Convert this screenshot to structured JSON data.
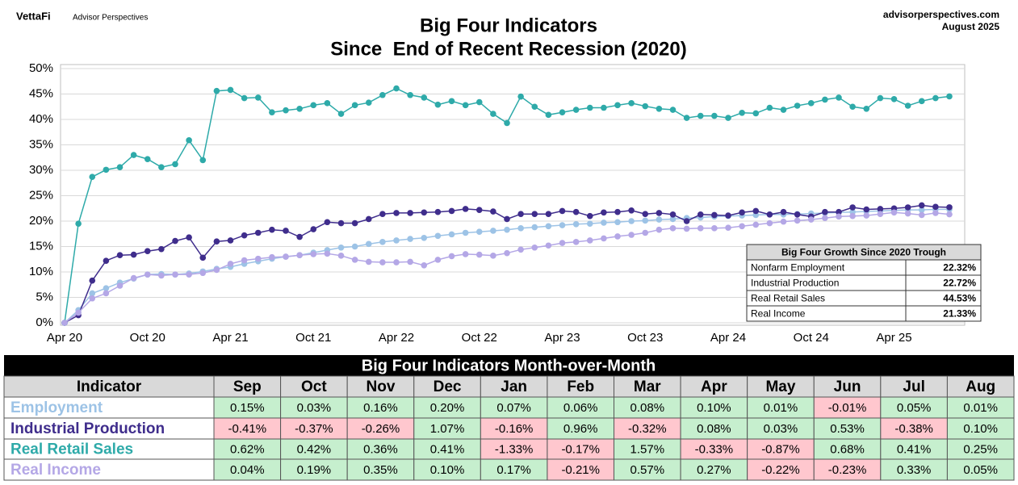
{
  "header": {
    "brand": "VettaFi",
    "brand_sub": "Advisor Perspectives",
    "site": "advisorperspectives.com",
    "date": "August 2025"
  },
  "chart_data": {
    "type": "line",
    "title": "Big Four Indicators",
    "subtitle": "Since  End of Recent Recession (2020)",
    "categories": [
      "Apr 20",
      null,
      null,
      null,
      null,
      null,
      "Oct 20",
      null,
      null,
      null,
      null,
      null,
      "Apr 21",
      null,
      null,
      null,
      null,
      null,
      "Oct 21",
      null,
      null,
      null,
      null,
      null,
      "Apr 22",
      null,
      null,
      null,
      null,
      null,
      "Oct 22",
      null,
      null,
      null,
      null,
      null,
      "Apr 23",
      null,
      null,
      null,
      null,
      null,
      "Oct 23",
      null,
      null,
      null,
      null,
      null,
      "Apr 24",
      null,
      null,
      null,
      null,
      null,
      "Oct 24",
      null,
      null,
      null,
      null,
      null,
      "Apr 25",
      null,
      null,
      null,
      null
    ],
    "ylim": [
      0,
      50
    ],
    "yticks": [
      {
        "value": 0,
        "label": "0%"
      },
      {
        "value": 5,
        "label": "5%"
      },
      {
        "value": 10,
        "label": "10%"
      },
      {
        "value": 15,
        "label": "15%"
      },
      {
        "value": 20,
        "label": "20%"
      },
      {
        "value": 25,
        "label": "25%"
      },
      {
        "value": 30,
        "label": "30%"
      },
      {
        "value": 35,
        "label": "35%"
      },
      {
        "value": 40,
        "label": "40%"
      },
      {
        "value": 45,
        "label": "45%"
      },
      {
        "value": 50,
        "label": "50%"
      }
    ],
    "grid": true,
    "series": [
      {
        "name": "Nonfarm Employment",
        "color": "#9dc3e6",
        "values": [
          0,
          2.5,
          5.8,
          6.8,
          7.9,
          8.7,
          9.5,
          9.6,
          9.5,
          9.7,
          10.1,
          10.6,
          11.0,
          11.6,
          12.1,
          12.6,
          13.0,
          13.3,
          13.8,
          14.3,
          14.8,
          15.0,
          15.5,
          15.9,
          16.2,
          16.5,
          16.7,
          17.1,
          17.4,
          17.7,
          17.9,
          18.1,
          18.3,
          18.6,
          18.8,
          19.0,
          19.2,
          19.4,
          19.5,
          19.7,
          19.8,
          20.0,
          20.1,
          20.3,
          20.4,
          20.6,
          20.7,
          20.9,
          21.0,
          21.1,
          21.2,
          21.3,
          21.3,
          21.4,
          21.5,
          21.6,
          21.7,
          21.8,
          21.9,
          22.0,
          22.1,
          22.2,
          22.2,
          22.3,
          22.32
        ]
      },
      {
        "name": "Industrial Production",
        "color": "#3f2d8c",
        "values": [
          0,
          1.5,
          8.3,
          12.2,
          13.3,
          13.4,
          14.1,
          14.5,
          16.1,
          16.8,
          12.8,
          16.0,
          16.2,
          17.2,
          17.7,
          18.3,
          18.1,
          16.9,
          18.4,
          19.8,
          19.6,
          19.6,
          20.4,
          21.4,
          21.6,
          21.6,
          21.7,
          21.8,
          22.0,
          22.4,
          22.2,
          21.9,
          20.4,
          21.4,
          21.4,
          21.4,
          22.0,
          21.8,
          21.0,
          21.7,
          21.8,
          22.1,
          21.4,
          21.6,
          21.3,
          20.0,
          21.3,
          21.2,
          21.1,
          21.7,
          22.0,
          21.3,
          21.8,
          21.3,
          20.9,
          21.8,
          21.8,
          22.7,
          22.3,
          22.4,
          22.5,
          22.7,
          23.1,
          22.8,
          22.72
        ]
      },
      {
        "name": "Real Retail Sales",
        "color": "#2eaaa9",
        "values": [
          0,
          19.5,
          28.7,
          30.1,
          30.6,
          33.0,
          32.2,
          30.6,
          31.2,
          35.9,
          32.0,
          45.6,
          45.8,
          44.2,
          44.3,
          41.4,
          41.8,
          42.1,
          42.8,
          43.2,
          41.1,
          42.8,
          43.3,
          44.8,
          46.1,
          44.8,
          44.3,
          42.9,
          43.6,
          42.8,
          43.4,
          41.1,
          39.3,
          44.5,
          42.5,
          40.9,
          41.4,
          41.9,
          42.3,
          42.3,
          42.8,
          43.2,
          42.6,
          42.1,
          41.9,
          40.3,
          40.7,
          40.7,
          40.3,
          41.3,
          41.2,
          42.3,
          41.9,
          42.7,
          43.2,
          43.9,
          44.3,
          42.5,
          42.1,
          44.2,
          44.0,
          42.7,
          43.6,
          44.2,
          44.53
        ]
      },
      {
        "name": "Real Income",
        "color": "#b4a7e6",
        "values": [
          0,
          2.0,
          4.8,
          5.8,
          7.3,
          8.8,
          9.5,
          9.3,
          9.5,
          9.5,
          9.8,
          10.4,
          11.6,
          12.3,
          12.6,
          12.9,
          13.0,
          13.3,
          13.5,
          13.6,
          13.2,
          12.4,
          12.0,
          11.9,
          11.9,
          12.0,
          11.3,
          12.4,
          13.1,
          13.5,
          13.4,
          13.2,
          13.7,
          14.4,
          14.8,
          15.2,
          15.7,
          15.9,
          16.2,
          16.6,
          17.0,
          17.3,
          17.7,
          18.3,
          18.6,
          18.5,
          18.6,
          18.6,
          18.7,
          19.0,
          19.3,
          19.6,
          19.9,
          20.1,
          20.3,
          20.6,
          20.9,
          21.0,
          21.1,
          21.4,
          21.7,
          21.5,
          21.2,
          21.6,
          21.33
        ]
      }
    ],
    "summary": {
      "title": "Big Four Growth Since 2020 Trough",
      "values": [
        "22.32%",
        "22.72%",
        "44.53%",
        "21.33%"
      ]
    }
  },
  "table": {
    "title": "Big Four Indicators Month-over-Month",
    "header": [
      "Indicator",
      "Sep",
      "Oct",
      "Nov",
      "Dec",
      "Jan",
      "Feb",
      "Mar",
      "Apr",
      "May",
      "Jun",
      "Jul",
      "Aug"
    ],
    "rows": [
      {
        "name": "Employment",
        "cells": [
          "0.15%",
          "0.03%",
          "0.16%",
          "0.20%",
          "0.07%",
          "0.06%",
          "0.08%",
          "0.10%",
          "0.01%",
          "-0.01%",
          "0.05%",
          "0.01%"
        ]
      },
      {
        "name": "Industrial Production",
        "cells": [
          "-0.41%",
          "-0.37%",
          "-0.26%",
          "1.07%",
          "-0.16%",
          "0.96%",
          "-0.32%",
          "0.08%",
          "0.03%",
          "0.53%",
          "-0.38%",
          "0.10%"
        ]
      },
      {
        "name": "Real Retail Sales",
        "cells": [
          "0.62%",
          "0.42%",
          "0.36%",
          "0.41%",
          "-1.33%",
          "-0.17%",
          "1.57%",
          "-0.33%",
          "-0.87%",
          "0.68%",
          "0.41%",
          "0.25%"
        ]
      },
      {
        "name": "Real Income",
        "cells": [
          "0.04%",
          "0.19%",
          "0.35%",
          "0.10%",
          "0.17%",
          "-0.21%",
          "0.57%",
          "0.27%",
          "-0.22%",
          "-0.23%",
          "0.33%",
          "0.05%"
        ]
      }
    ]
  }
}
